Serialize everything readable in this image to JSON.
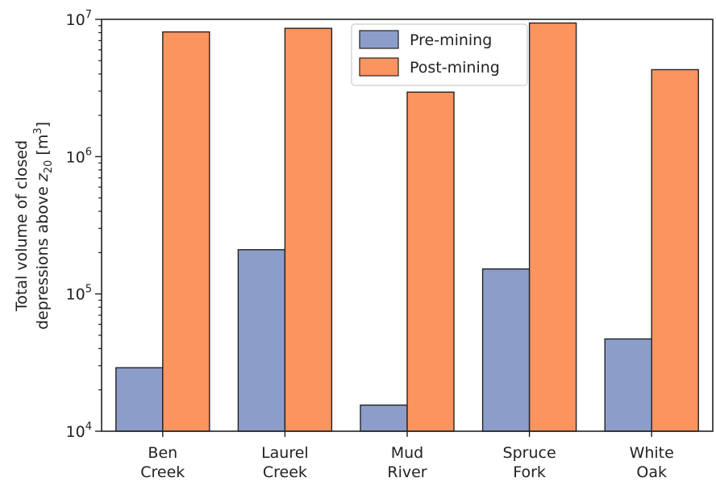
{
  "chart_data": {
    "type": "bar",
    "categories": [
      [
        "Ben",
        "Creek"
      ],
      [
        "Laurel",
        "Creek"
      ],
      [
        "Mud",
        "River"
      ],
      [
        "Spruce",
        "Fork"
      ],
      [
        "White",
        "Oak"
      ]
    ],
    "series": [
      {
        "name": "Pre-mining",
        "color": "#8c9dc9",
        "values": [
          29000,
          210000,
          15500,
          152000,
          47000
        ]
      },
      {
        "name": "Post-mining",
        "color": "#fc9460",
        "values": [
          8100000,
          8600000,
          2950000,
          9400000,
          4300000
        ]
      }
    ],
    "yscale": "log",
    "ylim": [
      10000,
      10000000
    ],
    "yticks": [
      {
        "value": 10000,
        "base": "10",
        "exp": "4"
      },
      {
        "value": 100000,
        "base": "10",
        "exp": "5"
      },
      {
        "value": 1000000,
        "base": "10",
        "exp": "6"
      },
      {
        "value": 10000000,
        "base": "10",
        "exp": "7"
      }
    ],
    "ylabel": {
      "line1": "Total volume of closed",
      "line2_prefix": "depressions above ",
      "line2_var": "z",
      "line2_sub": "20",
      "line2_unit_open": " [m",
      "line2_unit_sup": "3",
      "line2_unit_close": "]"
    },
    "legend": {
      "position": "top-center"
    },
    "grid": false
  }
}
